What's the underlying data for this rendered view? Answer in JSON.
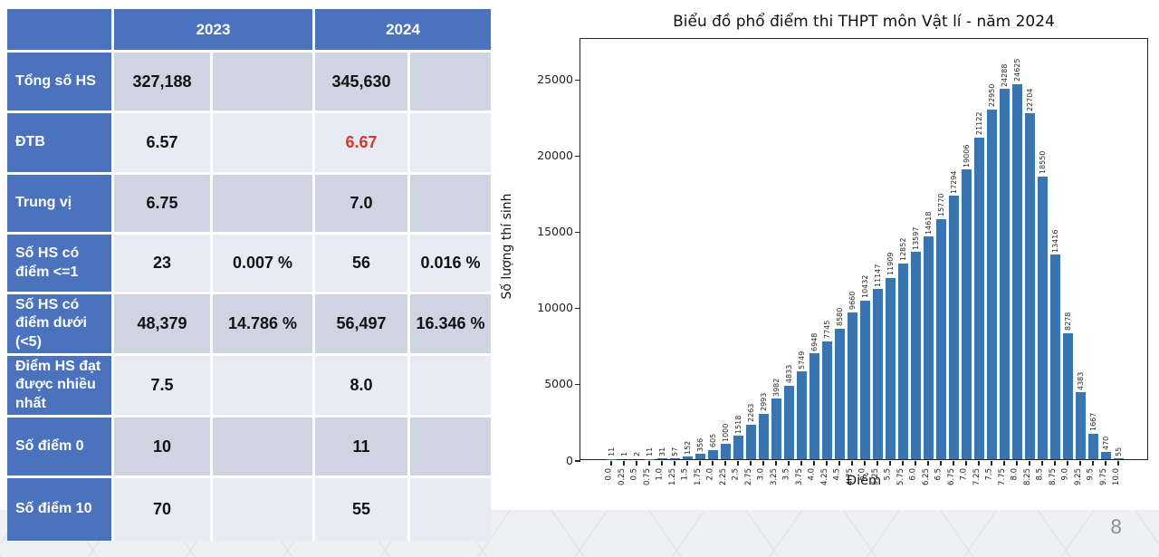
{
  "page_number": "8",
  "colors": {
    "table_blue": "#4b72bc",
    "stripe_dark": "#cfd4e3",
    "stripe_light": "#e9ebf4",
    "accent_red": "#d6372c",
    "bar_blue": "#3b75af",
    "band_gray": "#eef0f3"
  },
  "table": {
    "year_headers": [
      "2023",
      "2024"
    ],
    "rows": [
      {
        "label": "Tổng số HS",
        "cells": [
          "327,188",
          "",
          "345,630",
          ""
        ]
      },
      {
        "label": "ĐTB",
        "cells": [
          "6.57",
          "",
          "6.67",
          ""
        ],
        "accent_index": 2
      },
      {
        "label": "Trung vị",
        "cells": [
          "6.75",
          "",
          "7.0",
          ""
        ]
      },
      {
        "label": "Số HS có điểm <=1",
        "cells": [
          "23",
          "0.007 %",
          "56",
          "0.016 %"
        ]
      },
      {
        "label": "Số HS có điểm dưới (<5)",
        "cells": [
          "48,379",
          "14.786 %",
          "56,497",
          "16.346 %"
        ]
      },
      {
        "label": "Điểm HS đạt được nhiều nhất",
        "cells": [
          "7.5",
          "",
          "8.0",
          ""
        ]
      },
      {
        "label": "Số điểm 0",
        "cells": [
          "10",
          "",
          "11",
          ""
        ]
      },
      {
        "label": "Số điểm 10",
        "cells": [
          "70",
          "",
          "55",
          ""
        ]
      }
    ]
  },
  "chart_data": {
    "type": "bar",
    "title": "Biểu đồ phổ điểm thi THPT môn Vật lí - năm 2024",
    "xlabel": "Điểm",
    "ylabel": "Số lượng thí sinh",
    "categories": [
      "0.0",
      "0.25",
      "0.5",
      "0.75",
      "1.0",
      "1.25",
      "1.5",
      "1.75",
      "2.0",
      "2.25",
      "2.5",
      "2.75",
      "3.0",
      "3.25",
      "3.5",
      "3.75",
      "4.0",
      "4.25",
      "4.5",
      "4.75",
      "5.0",
      "5.25",
      "5.5",
      "5.75",
      "6.0",
      "6.25",
      "6.5",
      "6.75",
      "7.0",
      "7.25",
      "7.5",
      "7.75",
      "8.0",
      "8.25",
      "8.5",
      "8.75",
      "9.0",
      "9.25",
      "9.5",
      "9.75",
      "10.0"
    ],
    "values": [
      11,
      1,
      2,
      11,
      31,
      57,
      152,
      356,
      605,
      1000,
      1518,
      2263,
      2993,
      3982,
      4833,
      5749,
      6948,
      7745,
      8580,
      9660,
      10432,
      11147,
      11909,
      12852,
      13597,
      14618,
      15770,
      17294,
      19006,
      21122,
      22950,
      24288,
      24625,
      22704,
      18550,
      13416,
      8278,
      4383,
      1667,
      470,
      55
    ],
    "bar_value_labels_shown": true,
    "yticks": [
      0,
      5000,
      10000,
      15000,
      20000,
      25000
    ],
    "ylim": [
      0,
      27700
    ],
    "grid": false,
    "legend": null,
    "x_tick_rotation": 90
  }
}
